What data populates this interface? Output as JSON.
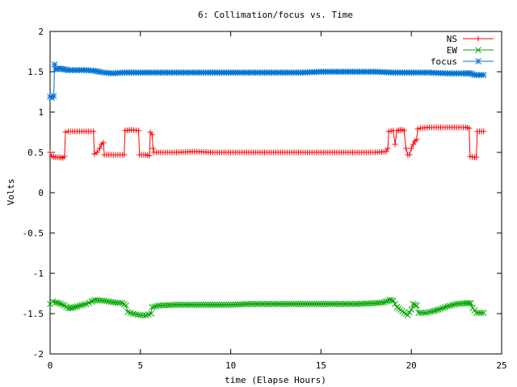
{
  "chart_data": {
    "type": "line",
    "title": "6: Collimation/focus vs. Time",
    "xlabel": "time (Elapse Hours)",
    "ylabel": "Volts",
    "xlim": [
      0,
      25
    ],
    "ylim": [
      -2,
      2
    ],
    "xticks": [
      0,
      5,
      10,
      15,
      20,
      25
    ],
    "yticks": [
      -2,
      -1.5,
      -1,
      -0.5,
      0,
      0.5,
      1,
      1.5,
      2
    ],
    "xtick_labels": [
      "0",
      "5",
      "10",
      "15",
      "20",
      "25"
    ],
    "ytick_labels": [
      "-2",
      "-1.5",
      "-1",
      "-0.5",
      "0",
      "0.5",
      "1",
      "1.5",
      "2"
    ],
    "grid": false,
    "legend_position": "top-right",
    "series": [
      {
        "name": "NS",
        "color": "#ff0000",
        "marker": "plus",
        "points": [
          [
            0,
            0.5
          ],
          [
            0.1,
            0.45
          ],
          [
            0.3,
            0.44
          ],
          [
            0.5,
            0.44
          ],
          [
            0.7,
            0.43
          ],
          [
            0.8,
            0.45
          ],
          [
            0.85,
            0.75
          ],
          [
            1,
            0.76
          ],
          [
            1.5,
            0.76
          ],
          [
            2,
            0.76
          ],
          [
            2.4,
            0.76
          ],
          [
            2.45,
            0.48
          ],
          [
            2.6,
            0.5
          ],
          [
            2.75,
            0.55
          ],
          [
            2.85,
            0.6
          ],
          [
            2.95,
            0.62
          ],
          [
            3,
            0.47
          ],
          [
            3.5,
            0.47
          ],
          [
            4,
            0.47
          ],
          [
            4.1,
            0.47
          ],
          [
            4.15,
            0.77
          ],
          [
            4.5,
            0.78
          ],
          [
            4.9,
            0.77
          ],
          [
            4.95,
            0.47
          ],
          [
            5.3,
            0.47
          ],
          [
            5.5,
            0.46
          ],
          [
            5.55,
            0.75
          ],
          [
            5.65,
            0.72
          ],
          [
            5.7,
            0.55
          ],
          [
            5.75,
            0.5
          ],
          [
            6,
            0.5
          ],
          [
            7,
            0.5
          ],
          [
            8,
            0.51
          ],
          [
            9,
            0.5
          ],
          [
            10,
            0.5
          ],
          [
            11,
            0.5
          ],
          [
            12,
            0.5
          ],
          [
            13,
            0.5
          ],
          [
            14,
            0.5
          ],
          [
            15,
            0.5
          ],
          [
            16,
            0.5
          ],
          [
            17,
            0.5
          ],
          [
            18,
            0.5
          ],
          [
            18.6,
            0.51
          ],
          [
            18.7,
            0.55
          ],
          [
            18.75,
            0.76
          ],
          [
            19,
            0.77
          ],
          [
            19.1,
            0.6
          ],
          [
            19.2,
            0.77
          ],
          [
            19.5,
            0.78
          ],
          [
            19.6,
            0.77
          ],
          [
            19.7,
            0.55
          ],
          [
            19.8,
            0.47
          ],
          [
            19.9,
            0.47
          ],
          [
            20,
            0.55
          ],
          [
            20.1,
            0.6
          ],
          [
            20.2,
            0.64
          ],
          [
            20.3,
            0.66
          ],
          [
            20.35,
            0.79
          ],
          [
            20.5,
            0.8
          ],
          [
            21,
            0.81
          ],
          [
            22,
            0.81
          ],
          [
            23,
            0.81
          ],
          [
            23.2,
            0.8
          ],
          [
            23.25,
            0.45
          ],
          [
            23.5,
            0.44
          ],
          [
            23.6,
            0.44
          ],
          [
            23.65,
            0.76
          ],
          [
            24,
            0.76
          ]
        ]
      },
      {
        "name": "EW",
        "color": "#00aa00",
        "marker": "cross",
        "points": [
          [
            0,
            -1.38
          ],
          [
            0.15,
            -1.35
          ],
          [
            0.3,
            -1.36
          ],
          [
            0.5,
            -1.37
          ],
          [
            0.8,
            -1.4
          ],
          [
            1,
            -1.43
          ],
          [
            1.2,
            -1.43
          ],
          [
            1.5,
            -1.41
          ],
          [
            2,
            -1.38
          ],
          [
            2.3,
            -1.35
          ],
          [
            2.5,
            -1.33
          ],
          [
            3,
            -1.34
          ],
          [
            3.5,
            -1.36
          ],
          [
            4,
            -1.37
          ],
          [
            4.2,
            -1.4
          ],
          [
            4.3,
            -1.48
          ],
          [
            4.6,
            -1.5
          ],
          [
            5,
            -1.52
          ],
          [
            5.3,
            -1.52
          ],
          [
            5.6,
            -1.5
          ],
          [
            5.65,
            -1.42
          ],
          [
            6,
            -1.4
          ],
          [
            7,
            -1.39
          ],
          [
            8,
            -1.39
          ],
          [
            9,
            -1.39
          ],
          [
            10,
            -1.39
          ],
          [
            11,
            -1.38
          ],
          [
            12,
            -1.38
          ],
          [
            13,
            -1.38
          ],
          [
            14,
            -1.38
          ],
          [
            15,
            -1.38
          ],
          [
            16,
            -1.38
          ],
          [
            17,
            -1.38
          ],
          [
            18,
            -1.37
          ],
          [
            18.5,
            -1.36
          ],
          [
            18.8,
            -1.33
          ],
          [
            19,
            -1.34
          ],
          [
            19.2,
            -1.42
          ],
          [
            19.5,
            -1.47
          ],
          [
            19.8,
            -1.52
          ],
          [
            20,
            -1.45
          ],
          [
            20.1,
            -1.38
          ],
          [
            20.3,
            -1.4
          ],
          [
            20.4,
            -1.49
          ],
          [
            20.8,
            -1.49
          ],
          [
            21.2,
            -1.47
          ],
          [
            21.5,
            -1.45
          ],
          [
            22,
            -1.41
          ],
          [
            22.5,
            -1.38
          ],
          [
            23,
            -1.37
          ],
          [
            23.3,
            -1.37
          ],
          [
            23.4,
            -1.43
          ],
          [
            23.6,
            -1.49
          ],
          [
            24,
            -1.49
          ]
        ]
      },
      {
        "name": "focus",
        "color": "#0072d6",
        "marker": "star",
        "points": [
          [
            0,
            1.19
          ],
          [
            0.1,
            1.18
          ],
          [
            0.2,
            1.2
          ],
          [
            0.25,
            1.59
          ],
          [
            0.3,
            1.53
          ],
          [
            0.5,
            1.54
          ],
          [
            0.8,
            1.53
          ],
          [
            1,
            1.52
          ],
          [
            1.5,
            1.52
          ],
          [
            2,
            1.52
          ],
          [
            2.5,
            1.51
          ],
          [
            2.7,
            1.5
          ],
          [
            3,
            1.49
          ],
          [
            3.5,
            1.48
          ],
          [
            4,
            1.49
          ],
          [
            4.5,
            1.49
          ],
          [
            5,
            1.49
          ],
          [
            6,
            1.49
          ],
          [
            7,
            1.49
          ],
          [
            8,
            1.49
          ],
          [
            9,
            1.49
          ],
          [
            10,
            1.49
          ],
          [
            11,
            1.49
          ],
          [
            12,
            1.49
          ],
          [
            13,
            1.49
          ],
          [
            14,
            1.49
          ],
          [
            15,
            1.5
          ],
          [
            16,
            1.5
          ],
          [
            17,
            1.5
          ],
          [
            18,
            1.5
          ],
          [
            19,
            1.49
          ],
          [
            20,
            1.49
          ],
          [
            21,
            1.49
          ],
          [
            22,
            1.48
          ],
          [
            23,
            1.48
          ],
          [
            23.3,
            1.48
          ],
          [
            23.5,
            1.46
          ],
          [
            24,
            1.46
          ]
        ]
      }
    ]
  }
}
